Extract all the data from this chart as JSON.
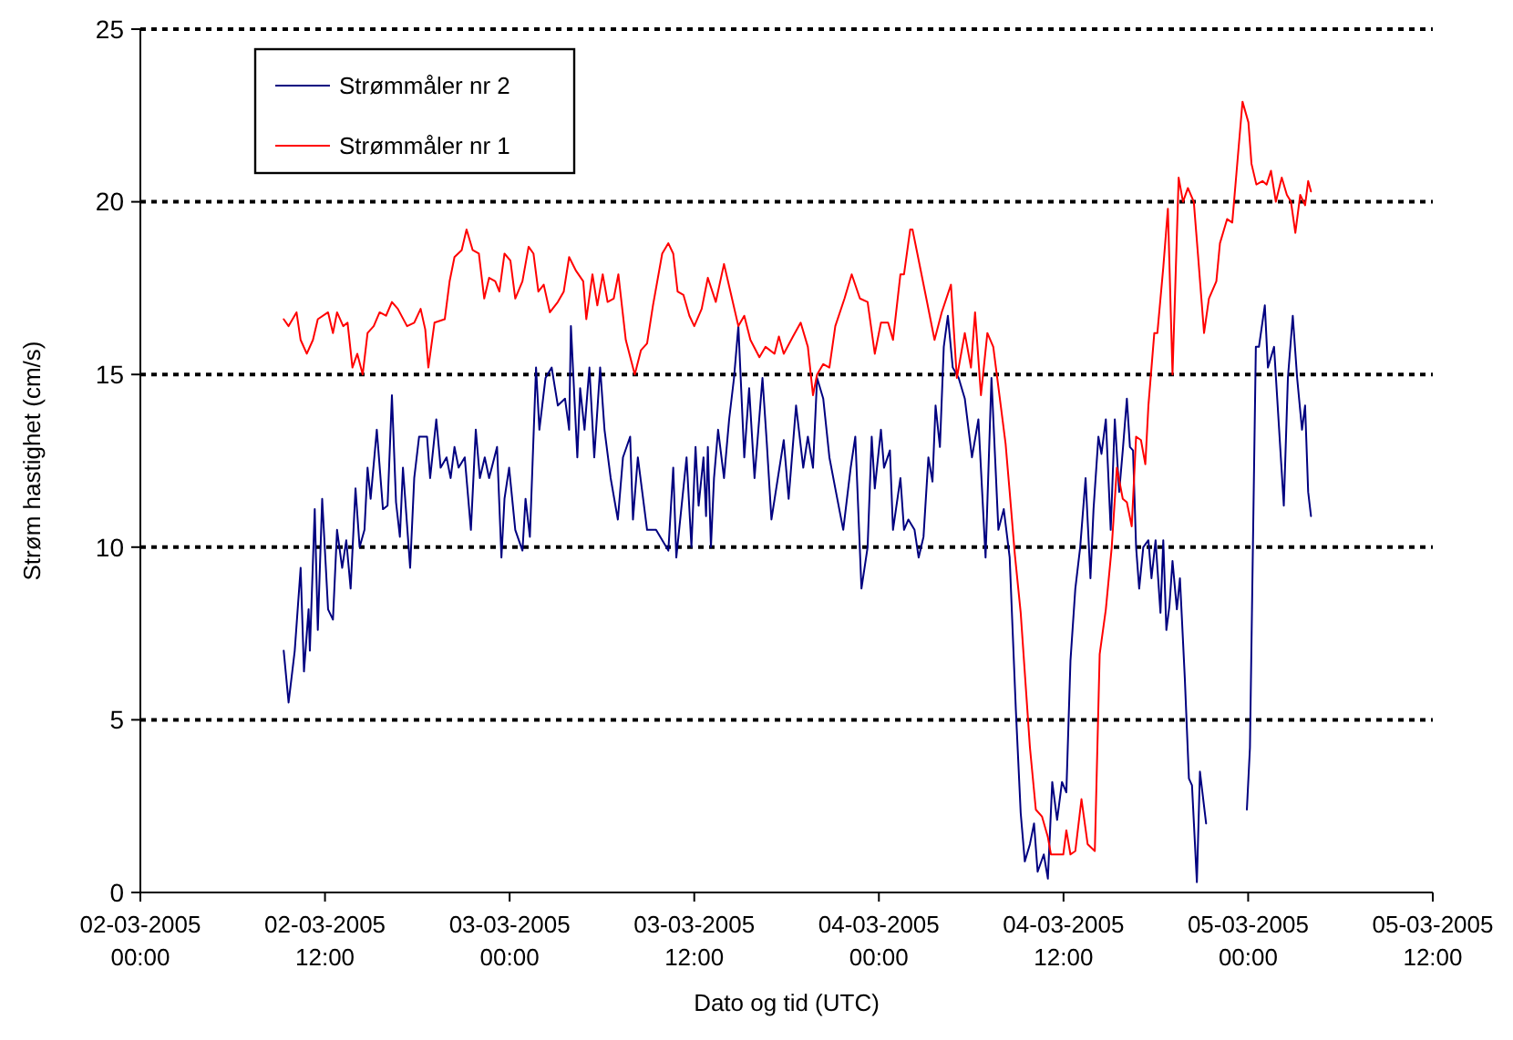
{
  "chart_data": {
    "type": "line",
    "xlabel": "Dato og tid (UTC)",
    "ylabel": "Strøm hastighet (cm/s)",
    "xlim": [
      "2005-03-02T00:00",
      "2005-03-05T12:00"
    ],
    "ylim": [
      0,
      25
    ],
    "xticks": [
      {
        "value": "2005-03-02T00:00",
        "label": "02-03-2005\n00:00"
      },
      {
        "value": "2005-03-02T12:00",
        "label": "02-03-2005\n12:00"
      },
      {
        "value": "2005-03-03T00:00",
        "label": "03-03-2005\n00:00"
      },
      {
        "value": "2005-03-03T12:00",
        "label": "03-03-2005\n12:00"
      },
      {
        "value": "2005-03-04T00:00",
        "label": "04-03-2005\n00:00"
      },
      {
        "value": "2005-03-04T12:00",
        "label": "04-03-2005\n12:00"
      },
      {
        "value": "2005-03-05T00:00",
        "label": "05-03-2005\n00:00"
      },
      {
        "value": "2005-03-05T12:00",
        "label": "05-03-2005\n12:00"
      }
    ],
    "yticks": [
      0,
      5,
      10,
      15,
      20,
      25
    ],
    "grid": "y",
    "legend": "top left",
    "marker": "none",
    "line_style": "solid",
    "series": [
      {
        "name": "Strømmåler nr 2",
        "color": "#000080",
        "x": [
          "2005-03-02T09:19",
          "2005-03-02T09:38",
          "2005-03-02T10:02",
          "2005-03-02T10:25",
          "2005-03-02T10:38",
          "2005-03-02T10:56",
          "2005-03-02T11:01",
          "2005-03-02T11:20",
          "2005-03-02T11:32",
          "2005-03-02T11:49",
          "2005-03-02T12:12",
          "2005-03-02T12:31",
          "2005-03-02T12:47",
          "2005-03-02T13:07",
          "2005-03-02T13:23",
          "2005-03-02T13:40",
          "2005-03-02T13:59",
          "2005-03-02T14:15",
          "2005-03-02T14:34",
          "2005-03-02T14:46",
          "2005-03-02T14:58",
          "2005-03-02T15:22",
          "2005-03-02T15:46",
          "2005-03-02T16:04",
          "2005-03-02T16:21",
          "2005-03-02T16:37",
          "2005-03-02T16:52",
          "2005-03-02T17:04",
          "2005-03-02T17:32",
          "2005-03-02T17:48",
          "2005-03-02T18:07",
          "2005-03-02T18:38",
          "2005-03-02T18:50",
          "2005-03-02T19:14",
          "2005-03-02T19:31",
          "2005-03-02T19:54",
          "2005-03-02T20:10",
          "2005-03-02T20:25",
          "2005-03-02T20:41",
          "2005-03-02T21:05",
          "2005-03-02T21:29",
          "2005-03-02T21:48",
          "2005-03-02T22:04",
          "2005-03-02T22:23",
          "2005-03-02T22:40",
          "2005-03-02T23:11",
          "2005-03-02T23:28",
          "2005-03-02T23:40",
          "2005-03-02T23:58",
          "2005-03-03T00:22",
          "2005-03-03T00:50",
          "2005-03-03T01:02",
          "2005-03-03T01:19",
          "2005-03-03T01:43",
          "2005-03-03T01:56",
          "2005-03-03T02:20",
          "2005-03-03T02:44",
          "2005-03-03T03:08",
          "2005-03-03T03:36",
          "2005-03-03T03:52",
          "2005-03-03T03:59",
          "2005-03-03T04:24",
          "2005-03-03T04:35",
          "2005-03-03T04:52",
          "2005-03-03T05:11",
          "2005-03-03T05:30",
          "2005-03-03T05:53",
          "2005-03-03T06:10",
          "2005-03-03T06:34",
          "2005-03-03T07:02",
          "2005-03-03T07:22",
          "2005-03-03T07:50",
          "2005-03-03T08:01",
          "2005-03-03T08:20",
          "2005-03-03T08:56",
          "2005-03-03T09:31",
          "2005-03-03T10:19",
          "2005-03-03T10:38",
          "2005-03-03T10:50",
          "2005-03-03T11:30",
          "2005-03-03T11:49",
          "2005-03-03T12:05",
          "2005-03-03T12:17",
          "2005-03-03T12:36",
          "2005-03-03T12:46",
          "2005-03-03T12:53",
          "2005-03-03T13:05",
          "2005-03-03T13:17",
          "2005-03-03T13:33",
          "2005-03-03T13:56",
          "2005-03-03T14:16",
          "2005-03-03T14:35",
          "2005-03-03T14:52",
          "2005-03-03T15:15",
          "2005-03-03T15:34",
          "2005-03-03T15:55",
          "2005-03-03T16:26",
          "2005-03-03T16:43",
          "2005-03-03T17:01",
          "2005-03-03T17:26",
          "2005-03-03T17:49",
          "2005-03-03T18:08",
          "2005-03-03T18:37",
          "2005-03-03T19:05",
          "2005-03-03T19:23",
          "2005-03-03T19:43",
          "2005-03-03T19:59",
          "2005-03-03T20:23",
          "2005-03-03T20:47",
          "2005-03-03T21:10",
          "2005-03-03T21:41",
          "2005-03-03T22:10",
          "2005-03-03T22:28",
          "2005-03-03T22:52",
          "2005-03-03T23:16",
          "2005-03-03T23:32",
          "2005-03-03T23:44",
          "2005-03-04T00:08",
          "2005-03-04T00:20",
          "2005-03-04T00:43",
          "2005-03-04T00:55",
          "2005-03-04T01:24",
          "2005-03-04T01:38",
          "2005-03-04T01:55",
          "2005-03-04T02:19",
          "2005-03-04T02:35",
          "2005-03-04T02:54",
          "2005-03-04T03:13",
          "2005-03-04T03:29",
          "2005-03-04T03:41",
          "2005-03-04T03:58",
          "2005-03-04T04:13",
          "2005-03-04T04:29",
          "2005-03-04T04:48",
          "2005-03-04T05:11",
          "2005-03-04T05:35",
          "2005-03-04T06:03",
          "2005-03-04T06:28",
          "2005-03-04T06:56",
          "2005-03-04T07:19",
          "2005-03-04T07:46",
          "2005-03-04T08:07",
          "2005-03-04T08:30",
          "2005-03-04T08:54",
          "2005-03-04T09:13",
          "2005-03-04T09:29",
          "2005-03-04T09:49",
          "2005-03-04T10:05",
          "2005-03-04T10:19",
          "2005-03-04T10:43",
          "2005-03-04T10:59",
          "2005-03-04T11:16",
          "2005-03-04T11:35",
          "2005-03-04T11:54",
          "2005-03-04T12:11",
          "2005-03-04T12:27",
          "2005-03-04T12:46",
          "2005-03-04T13:05",
          "2005-03-04T13:26",
          "2005-03-04T13:45",
          "2005-03-04T13:57",
          "2005-03-04T14:16",
          "2005-03-04T14:28",
          "2005-03-04T14:45",
          "2005-03-04T15:04",
          "2005-03-04T15:20",
          "2005-03-04T15:37",
          "2005-03-04T15:51",
          "2005-03-04T16:07",
          "2005-03-04T16:19",
          "2005-03-04T16:31",
          "2005-03-04T16:43",
          "2005-03-04T16:55",
          "2005-03-04T17:11",
          "2005-03-04T17:31",
          "2005-03-04T17:43",
          "2005-03-04T17:59",
          "2005-03-04T18:18",
          "2005-03-04T18:29",
          "2005-03-04T18:41",
          "2005-03-04T18:53",
          "2005-03-04T19:05",
          "2005-03-04T19:22",
          "2005-03-04T19:34",
          "2005-03-04T19:53",
          "2005-03-04T20:09",
          "2005-03-04T20:21",
          "2005-03-04T20:40",
          "2005-03-04T20:52",
          "2005-03-04T21:16",
          "2005-03-04T22:30",
          "2005-03-04T23:55",
          "2005-03-05T00:07",
          "2005-03-05T00:30",
          "2005-03-05T00:42",
          "2005-03-05T01:05",
          "2005-03-05T01:17",
          "2005-03-05T01:41",
          "2005-03-05T02:19",
          "2005-03-05T02:35",
          "2005-03-05T02:54",
          "2005-03-05T03:11",
          "2005-03-05T03:30",
          "2005-03-05T03:42",
          "2005-03-05T03:54",
          "2005-03-05T04:05"
        ],
        "values": [
          7.0,
          5.5,
          7.0,
          9.4,
          6.4,
          8.2,
          7.0,
          11.1,
          7.6,
          11.4,
          8.2,
          7.9,
          10.5,
          9.4,
          10.2,
          8.8,
          11.7,
          10.0,
          10.5,
          12.3,
          11.4,
          13.4,
          11.1,
          11.2,
          14.4,
          11.3,
          10.3,
          12.3,
          9.4,
          12.0,
          13.2,
          13.2,
          12.0,
          13.7,
          12.3,
          12.6,
          12.0,
          12.9,
          12.3,
          12.6,
          10.5,
          13.4,
          12.0,
          12.6,
          12.0,
          12.9,
          9.7,
          11.4,
          12.3,
          10.5,
          9.9,
          11.4,
          10.3,
          15.2,
          13.4,
          14.9,
          15.2,
          14.1,
          14.3,
          13.4,
          16.4,
          12.6,
          14.6,
          13.4,
          15.2,
          12.6,
          15.2,
          13.4,
          12.0,
          10.8,
          12.6,
          13.2,
          10.8,
          12.6,
          10.5,
          10.5,
          9.9,
          12.3,
          9.7,
          12.6,
          10.0,
          12.9,
          11.2,
          12.6,
          10.9,
          12.9,
          10.0,
          12.0,
          13.4,
          12.0,
          13.7,
          14.9,
          16.4,
          12.6,
          14.6,
          12.0,
          14.9,
          13.0,
          10.8,
          12.0,
          13.1,
          11.4,
          14.1,
          12.3,
          13.2,
          12.3,
          14.9,
          14.3,
          12.6,
          11.7,
          10.5,
          12.3,
          13.2,
          8.8,
          10.0,
          13.2,
          11.7,
          13.4,
          12.3,
          12.8,
          10.5,
          12.0,
          10.5,
          10.8,
          10.5,
          9.7,
          10.3,
          12.6,
          11.9,
          14.1,
          12.9,
          15.8,
          16.7,
          15.2,
          14.9,
          14.3,
          12.6,
          13.7,
          9.7,
          14.9,
          10.5,
          11.1,
          9.7,
          5.3,
          2.3,
          0.9,
          1.4,
          2.0,
          0.6,
          1.1,
          0.4,
          3.2,
          2.1,
          3.2,
          2.9,
          6.7,
          8.8,
          10.0,
          12.0,
          9.1,
          11.1,
          13.2,
          12.7,
          13.7,
          10.5,
          13.7,
          11.6,
          12.8,
          14.3,
          12.9,
          12.8,
          10.0,
          8.8,
          10.0,
          10.2,
          9.1,
          10.2,
          8.1,
          10.2,
          7.6,
          8.3,
          9.6,
          8.2,
          9.1,
          6.2,
          3.3,
          3.1,
          0.3,
          3.5,
          2.0,
          null,
          2.4,
          4.2,
          15.8,
          15.8,
          17.0,
          15.2,
          15.8,
          11.2,
          14.9,
          16.7,
          14.9,
          13.4,
          14.1,
          11.6,
          10.9
        ]
      },
      {
        "name": "Strømmåler nr 1",
        "color": "#ff0000",
        "x": [
          "2005-03-02T09:19",
          "2005-03-02T09:38",
          "2005-03-02T10:09",
          "2005-03-02T10:25",
          "2005-03-02T10:49",
          "2005-03-02T11:13",
          "2005-03-02T11:32",
          "2005-03-02T12:12",
          "2005-03-02T12:31",
          "2005-03-02T12:47",
          "2005-03-02T13:11",
          "2005-03-02T13:28",
          "2005-03-02T13:47",
          "2005-03-02T14:06",
          "2005-03-02T14:27",
          "2005-03-02T14:46",
          "2005-03-02T15:10",
          "2005-03-02T15:33",
          "2005-03-02T15:58",
          "2005-03-02T16:21",
          "2005-03-02T16:44",
          "2005-03-02T17:20",
          "2005-03-02T17:48",
          "2005-03-02T18:13",
          "2005-03-02T18:31",
          "2005-03-02T18:43",
          "2005-03-02T19:07",
          "2005-03-02T19:47",
          "2005-03-02T20:06",
          "2005-03-02T20:25",
          "2005-03-02T20:53",
          "2005-03-02T21:12",
          "2005-03-02T21:36",
          "2005-03-02T22:00",
          "2005-03-02T22:21",
          "2005-03-02T22:40",
          "2005-03-02T23:04",
          "2005-03-02T23:20",
          "2005-03-02T23:40",
          "2005-03-03T00:03",
          "2005-03-03T00:22",
          "2005-03-03T00:50",
          "2005-03-03T01:14",
          "2005-03-03T01:33",
          "2005-03-03T01:52",
          "2005-03-03T02:13",
          "2005-03-03T02:37",
          "2005-03-03T03:08",
          "2005-03-03T03:31",
          "2005-03-03T03:52",
          "2005-03-03T04:19",
          "2005-03-03T04:47",
          "2005-03-03T04:59",
          "2005-03-03T05:23",
          "2005-03-03T05:42",
          "2005-03-03T06:03",
          "2005-03-03T06:22",
          "2005-03-03T06:46",
          "2005-03-03T07:04",
          "2005-03-03T07:33",
          "2005-03-03T08:08",
          "2005-03-03T08:32",
          "2005-03-03T08:56",
          "2005-03-03T09:19",
          "2005-03-03T09:55",
          "2005-03-03T10:19",
          "2005-03-03T10:38",
          "2005-03-03T10:55",
          "2005-03-03T11:18",
          "2005-03-03T11:41",
          "2005-03-03T12:00",
          "2005-03-03T12:29",
          "2005-03-03T12:53",
          "2005-03-03T13:24",
          "2005-03-03T13:56",
          "2005-03-03T14:21",
          "2005-03-03T14:52",
          "2005-03-03T15:15",
          "2005-03-03T15:39",
          "2005-03-03T16:14",
          "2005-03-03T16:38",
          "2005-03-03T17:13",
          "2005-03-03T17:30",
          "2005-03-03T17:49",
          "2005-03-03T18:25",
          "2005-03-03T18:55",
          "2005-03-03T19:23",
          "2005-03-03T19:43",
          "2005-03-03T19:59",
          "2005-03-03T20:23",
          "2005-03-03T20:47",
          "2005-03-03T21:10",
          "2005-03-03T21:46",
          "2005-03-03T22:14",
          "2005-03-03T22:46",
          "2005-03-03T23:16",
          "2005-03-03T23:44",
          "2005-03-04T00:08",
          "2005-03-04T00:36",
          "2005-03-04T00:55",
          "2005-03-04T01:24",
          "2005-03-04T01:38",
          "2005-03-04T02:02",
          "2005-03-04T02:11",
          "2005-03-04T02:30",
          "2005-03-04T03:05",
          "2005-03-04T03:37",
          "2005-03-04T04:05",
          "2005-03-04T04:41",
          "2005-03-04T05:04",
          "2005-03-04T05:35",
          "2005-03-04T05:59",
          "2005-03-04T06:15",
          "2005-03-04T06:38",
          "2005-03-04T07:03",
          "2005-03-04T07:26",
          "2005-03-04T07:50",
          "2005-03-04T08:14",
          "2005-03-04T08:30",
          "2005-03-04T08:50",
          "2005-03-04T09:13",
          "2005-03-04T09:49",
          "2005-03-04T10:12",
          "2005-03-04T10:36",
          "2005-03-04T10:59",
          "2005-03-04T11:11",
          "2005-03-04T11:59",
          "2005-03-04T12:11",
          "2005-03-04T12:27",
          "2005-03-04T12:46",
          "2005-03-04T13:10",
          "2005-03-04T13:34",
          "2005-03-04T14:02",
          "2005-03-04T14:21",
          "2005-03-04T14:45",
          "2005-03-04T15:08",
          "2005-03-04T15:28",
          "2005-03-04T15:51",
          "2005-03-04T16:07",
          "2005-03-04T16:26",
          "2005-03-04T16:43",
          "2005-03-04T17:02",
          "2005-03-04T17:19",
          "2005-03-04T17:31",
          "2005-03-04T17:54",
          "2005-03-04T18:06",
          "2005-03-04T18:29",
          "2005-03-04T18:47",
          "2005-03-04T19:05",
          "2005-03-04T19:29",
          "2005-03-04T19:46",
          "2005-03-04T20:05",
          "2005-03-04T20:28",
          "2005-03-04T20:44",
          "2005-03-04T21:08",
          "2005-03-04T21:27",
          "2005-03-04T21:56",
          "2005-03-04T22:10",
          "2005-03-04T22:38",
          "2005-03-04T22:58",
          "2005-03-04T23:14",
          "2005-03-04T23:38",
          "2005-03-05T00:01",
          "2005-03-05T00:13",
          "2005-03-05T00:32",
          "2005-03-05T00:56",
          "2005-03-05T01:12",
          "2005-03-05T01:29",
          "2005-03-05T01:48",
          "2005-03-05T02:11",
          "2005-03-05T02:31",
          "2005-03-05T02:47",
          "2005-03-05T03:04",
          "2005-03-05T03:23",
          "2005-03-05T03:42",
          "2005-03-05T03:54",
          "2005-03-05T04:05"
        ],
        "values": [
          16.6,
          16.4,
          16.8,
          16.0,
          15.6,
          16.0,
          16.6,
          16.8,
          16.2,
          16.8,
          16.4,
          16.5,
          15.2,
          15.6,
          15.0,
          16.2,
          16.4,
          16.8,
          16.7,
          17.1,
          16.9,
          16.4,
          16.5,
          16.9,
          16.3,
          15.2,
          16.5,
          16.6,
          17.7,
          18.4,
          18.6,
          19.2,
          18.6,
          18.5,
          17.2,
          17.8,
          17.7,
          17.4,
          18.5,
          18.3,
          17.2,
          17.7,
          18.7,
          18.5,
          17.4,
          17.6,
          16.8,
          17.1,
          17.4,
          18.4,
          18.0,
          17.7,
          16.6,
          17.9,
          17.0,
          17.9,
          17.1,
          17.2,
          17.9,
          16.0,
          15.0,
          15.7,
          15.9,
          17.0,
          18.5,
          18.8,
          18.5,
          17.4,
          17.3,
          16.7,
          16.4,
          16.9,
          17.8,
          17.1,
          18.2,
          17.4,
          16.4,
          16.7,
          16.0,
          15.5,
          15.8,
          15.6,
          16.1,
          15.6,
          16.1,
          16.5,
          15.8,
          14.4,
          15.0,
          15.3,
          15.2,
          16.4,
          17.2,
          17.9,
          17.2,
          17.1,
          15.6,
          16.5,
          16.5,
          16.0,
          17.9,
          17.9,
          19.2,
          19.2,
          18.5,
          17.2,
          16.0,
          16.8,
          17.6,
          14.9,
          16.2,
          15.2,
          16.8,
          14.4,
          16.2,
          15.8,
          14.4,
          13.0,
          11.6,
          9.8,
          8.1,
          4.2,
          2.4,
          2.2,
          1.6,
          1.1,
          1.1,
          1.8,
          1.1,
          1.2,
          2.7,
          1.4,
          1.2,
          6.9,
          8.2,
          10.0,
          12.3,
          11.4,
          11.3,
          10.6,
          13.2,
          13.1,
          12.4,
          14.1,
          16.2,
          16.2,
          18.1,
          19.8,
          15.0,
          20.7,
          20.0,
          20.4,
          20.0,
          18.5,
          16.2,
          17.2,
          17.7,
          18.8,
          19.5,
          19.4,
          20.8,
          22.9,
          22.3,
          21.1,
          20.5,
          20.6,
          20.5,
          20.9,
          20.0,
          20.7,
          20.2,
          20.0,
          19.1,
          20.2,
          19.9,
          20.6,
          20.3
        ]
      }
    ]
  }
}
